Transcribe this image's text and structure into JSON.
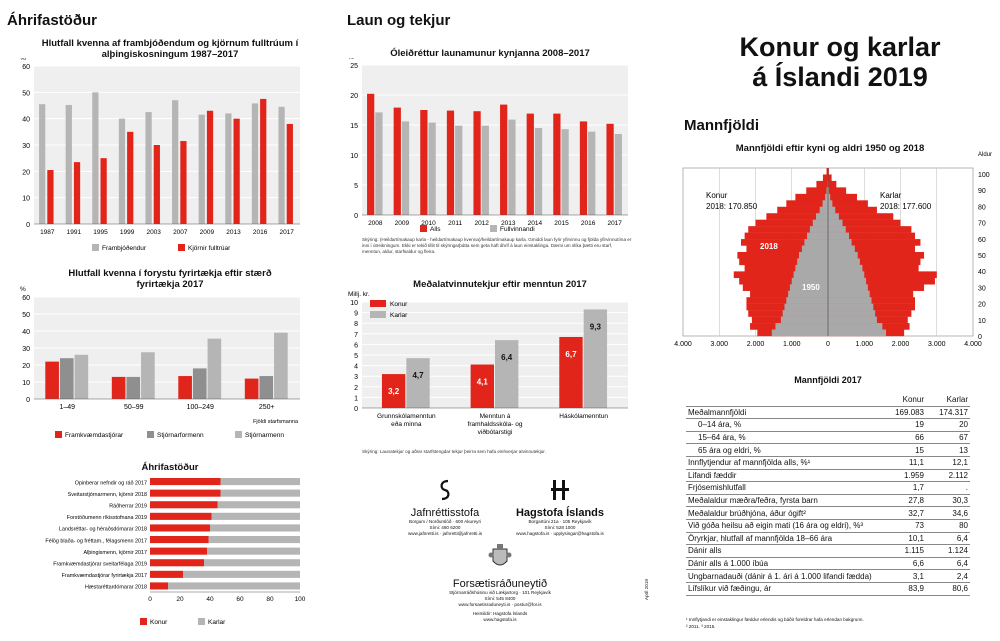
{
  "colors": {
    "red": "#e1251b",
    "grey": "#b5b5b5",
    "darkgrey": "#8f8f8f",
    "plotbg": "#efefef",
    "white": "#ffffff"
  },
  "sections": {
    "ahrif": "Áhrifastöður",
    "laun": "Laun og tekjur",
    "mannfjoldi": "Mannfjöldi"
  },
  "main_title": {
    "line1": "Konur og karlar",
    "line2": "á Íslandi 2019"
  },
  "chart_data": [
    {
      "id": "elections",
      "type": "bar",
      "title": "Hlutfall kvenna af frambjóðendum og kjörnum fulltrúum í alþingiskosningum 1987–2017",
      "ylabel": "%",
      "ylim": [
        0,
        60
      ],
      "yticks": [
        0,
        10,
        20,
        30,
        40,
        50,
        60
      ],
      "categories": [
        "1987",
        "1991",
        "1995",
        "1999",
        "2003",
        "2007",
        "2009",
        "2013",
        "2016",
        "2017"
      ],
      "series": [
        {
          "name": "Frambjóðendur",
          "color": "#b5b5b5",
          "values": [
            45.5,
            45.2,
            50,
            40,
            42.5,
            47,
            41.5,
            42,
            45.8,
            44.5
          ]
        },
        {
          "name": "Kjörnir fulltrúar",
          "color": "#e1251b",
          "values": [
            20.5,
            23.5,
            25,
            35,
            30,
            31.5,
            43,
            40,
            47.5,
            38
          ]
        }
      ]
    },
    {
      "id": "wage",
      "type": "bar",
      "title": "Óleiðréttur launamunur kynjanna 2008–2017",
      "ylabel": "%",
      "ylim": [
        0,
        25
      ],
      "yticks": [
        0,
        5,
        10,
        15,
        20,
        25
      ],
      "categories": [
        "2008",
        "2009",
        "2010",
        "2011",
        "2012",
        "2013",
        "2014",
        "2015",
        "2016",
        "2017"
      ],
      "series": [
        {
          "name": "Alls",
          "color": "#e1251b",
          "values": [
            20.2,
            17.9,
            17.5,
            17.4,
            17.3,
            18.4,
            16.9,
            16.9,
            15.6,
            15.2
          ]
        },
        {
          "name": "Fullvinnandi",
          "color": "#b5b5b5",
          "values": [
            17.1,
            15.6,
            15.4,
            14.9,
            14.9,
            15.9,
            14.5,
            14.3,
            13.9,
            13.5
          ]
        }
      ],
      "note": "Skýring: (Heildartímakaup karla - heildartímakaup kvenna)/heildartímakaup karla. Gmiddi laun fyrir yfirvinnu og fjölda yfirvinnutíma er inni í útreikningum. Ekki er tekið tillit til skýringarþátta sem geta haft áhrif á laun einstaklinga. Dæmi um slíka þætti eru starf, menntun, aldur, starfsaldur og fleira."
    },
    {
      "id": "companies",
      "type": "bar",
      "title": "Hlutfall kvenna í forystu fyrirtækja eftir stærð fyrirtækja 2017",
      "ylabel": "%",
      "ylim": [
        0,
        60
      ],
      "yticks": [
        0,
        10,
        20,
        30,
        40,
        50,
        60
      ],
      "categories": [
        "1–49",
        "50–99",
        "100–249",
        "250+"
      ],
      "xnote": "Fjöldi starfsmanna",
      "series": [
        {
          "name": "Framkvæmdastjórar",
          "color": "#e1251b",
          "values": [
            22,
            13,
            13.5,
            12
          ]
        },
        {
          "name": "Stjórnarformenn",
          "color": "#8f8f8f",
          "values": [
            24,
            13,
            18,
            13.5
          ]
        },
        {
          "name": "Stjórnarmenn",
          "color": "#b5b5b5",
          "values": [
            26,
            27.5,
            35.5,
            39
          ]
        }
      ]
    },
    {
      "id": "income",
      "type": "bar",
      "title": "Meðalatvinnutekjur eftir menntun 2017",
      "ylabel": "Millj. kr.",
      "ylim": [
        0,
        10
      ],
      "yticks": [
        0,
        1,
        2,
        3,
        4,
        5,
        6,
        7,
        8,
        9,
        10
      ],
      "categories": [
        "Grunnskólamenntun eða minna",
        "Menntun á framhaldsskóla- og viðbótarstigi",
        "Háskólamenntun"
      ],
      "series": [
        {
          "name": "Konur",
          "color": "#e1251b",
          "values": [
            3.2,
            4.1,
            6.7
          ],
          "labels": [
            "3,2",
            "4,1",
            "6,7"
          ]
        },
        {
          "name": "Karlar",
          "color": "#b5b5b5",
          "values": [
            4.7,
            6.4,
            9.3
          ],
          "labels": [
            "4,7",
            "6,4",
            "9,3"
          ]
        }
      ],
      "note": "Skýring: Launatekjur og aðrar starfstengdar tekjur þeirra sem hafa einhverjar atvinnutekjur."
    },
    {
      "id": "positions",
      "type": "bar",
      "orientation": "horizontal",
      "stacked": true,
      "title": "Áhrifastöður",
      "xlim": [
        0,
        100
      ],
      "xticks": [
        0,
        20,
        40,
        60,
        80,
        100
      ],
      "categories": [
        "Opinberar nefndir og ráð 2017",
        "Sveitarstjórnarmenn, kjörnir 2018",
        "Ráðherrar 2019",
        "Forstöðumenn ríkisstofnana 2019",
        "Landsréttar- og héraðsdómarar 2018",
        "Félög blaða- og fréttam., félagsmenn 2017",
        "Alþingismenn, kjörnir 2017",
        "Framkvæmdastjórar sveitarfélaga 2019",
        "Framkvæmdastjórar fyrirtækja 2017",
        "Hæstaréttardómarar 2018"
      ],
      "series": [
        {
          "name": "Konur",
          "color": "#e1251b",
          "values": [
            47,
            47,
            45,
            41,
            40,
            39,
            38,
            36,
            22,
            12
          ]
        },
        {
          "name": "Karlar",
          "color": "#b5b5b5",
          "values": [
            53,
            53,
            55,
            59,
            60,
            61,
            62,
            64,
            78,
            88
          ]
        }
      ]
    },
    {
      "id": "pyramid",
      "type": "bar",
      "orientation": "horizontal",
      "title": "Mannfjöldi eftir kyni og aldri 1950 og 2018",
      "ylabel": "Aldur",
      "yticks": [
        0,
        10,
        20,
        30,
        40,
        50,
        60,
        70,
        80,
        90,
        100
      ],
      "xticks": [
        4000,
        3000,
        2000,
        1000,
        0,
        1000,
        2000,
        3000,
        4000
      ],
      "xtick_labels": [
        "4.000",
        "3.000",
        "2.000",
        "1.000",
        "0",
        "1.000",
        "2.000",
        "3.000",
        "4.000"
      ],
      "labels": {
        "left": "Konur",
        "left_value": "2018: 170.850",
        "right": "Karlar",
        "right_value": "2018: 177.600",
        "y2018": "2018",
        "y1950": "1950"
      },
      "women_2018": [
        1950,
        2150,
        2100,
        2200,
        2250,
        2250,
        2150,
        2350,
        2450,
        2600,
        2300,
        2450,
        2500,
        2250,
        2400,
        2300,
        2200,
        2000,
        1700,
        1400,
        1150,
        900,
        600,
        320,
        140,
        40
      ],
      "men_2018": [
        2100,
        2250,
        2200,
        2300,
        2400,
        2400,
        2350,
        2650,
        2950,
        3000,
        2500,
        2550,
        2650,
        2400,
        2550,
        2400,
        2300,
        2000,
        1800,
        1350,
        1100,
        800,
        500,
        230,
        100,
        25
      ],
      "women_1950": [
        1550,
        1450,
        1300,
        1250,
        1200,
        1150,
        1100,
        1050,
        1000,
        950,
        900,
        850,
        800,
        720,
        650,
        580,
        500,
        420,
        330,
        230,
        150,
        80,
        40,
        15,
        5,
        0
      ],
      "men_1950": [
        1600,
        1500,
        1350,
        1300,
        1250,
        1200,
        1150,
        1100,
        1050,
        1000,
        950,
        880,
        820,
        740,
        650,
        580,
        490,
        400,
        300,
        200,
        120,
        60,
        25,
        10,
        3,
        0
      ]
    }
  ],
  "legend_positions": {
    "konur": "Konur",
    "karlar": "Karlar"
  },
  "pop_table": {
    "title": "Mannfjöldi  2017",
    "header": [
      "",
      "Konur",
      "Karlar"
    ],
    "rows": [
      [
        "Meðalmannfjöldi",
        "169.083",
        "174.317"
      ],
      [
        "  0–14 ára, %",
        "19",
        "20"
      ],
      [
        "  15–64 ára, %",
        "66",
        "67"
      ],
      [
        "  65 ára og eldri, %",
        "15",
        "13"
      ],
      [
        "Innflytjendur af mannfjölda alls, %¹",
        "11,1",
        "12,1"
      ],
      [
        "Lifandi fæddir",
        "1.959",
        "2.112"
      ],
      [
        "Frjósemishlutfall",
        "1,7",
        "."
      ],
      [
        "Meðalaldur mæðra/feðra, fyrsta barn",
        "27,8",
        "30,3"
      ],
      [
        "Meðalaldur brúðhjóna, áður ógift²",
        "32,7",
        "34,6"
      ],
      [
        "Við góða heilsu að eigin mati (16 ára og eldri), %³",
        "73",
        "80"
      ],
      [
        "Öryrkjar, hlutfall af mannfjölda 18–66 ára",
        "10,1",
        "6,4"
      ],
      [
        "Dánir alls",
        "1.115",
        "1.124"
      ],
      [
        "Dánir alls á 1.000 íbúa",
        "6,6",
        "6,4"
      ],
      [
        "Ungbarnadauði (dánir á 1. ári á 1.000 lifandi fædda)",
        "3,1",
        "2,4"
      ],
      [
        "Lífslíkur við fæðingu, ár",
        "83,9",
        "80,6"
      ]
    ],
    "footnote1": "¹ Innflytjandi er einstaklingur fæddur erlendis og báðir foreldrar hafa erlendan bakgrunn.",
    "footnote2": "² 2011. ³ 2015."
  },
  "logos": {
    "jafn_name": "Jafnréttisstofa",
    "jafn_l1": "Borgum / Norðurslóð · 600 Akureyri",
    "jafn_l2": "Sími: 460 6200",
    "jafn_l3": "www.jafnretti.is · jafnretti@jafnretti.is",
    "hag_name": "Hagstofa Íslands",
    "hag_l1": "Borgartúni 21a · 105 Reykjavík",
    "hag_l2": "Sími: 528 1000",
    "hag_l3": "www.hagstofa.is · upplysingar@hagstofa.is",
    "fors_name": "Forsætisráðuneytið",
    "fors_l1": "Stjórnarráðshúsinu við Lækjartorg · 101 Reykjavík",
    "fors_l2": "Sími: 545 8400",
    "fors_l3": "www.forsaetisraduneyti.is · postur@for.is",
    "heim_l1": "Heimildir: Hagstofa Íslands",
    "heim_l2": "www.hagstofa.is",
    "print_code": "Apríl 2019"
  }
}
